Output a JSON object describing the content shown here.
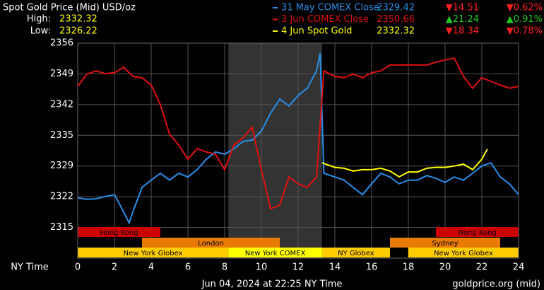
{
  "chart_data": {
    "type": "line",
    "title": "Spot Gold Price (Mid) USD/oz",
    "high_label": "High:",
    "high": 2332.32,
    "low_label": "Low:",
    "low": 2326.22,
    "xlabel": "NY Time",
    "footer": "Jun 04, 2024 at 22:25 NY Time",
    "source": "goldprice.org (mid)",
    "xlim": [
      0,
      24
    ],
    "xticks": [
      0,
      2,
      4,
      6,
      8,
      10,
      12,
      14,
      16,
      18,
      20,
      22,
      24
    ],
    "ylim": [
      2308.35,
      2355.6
    ],
    "yticks": [
      {
        "value": 2355.6,
        "label": "2356"
      },
      {
        "value": 2348.85,
        "label": "2349"
      },
      {
        "value": 2342.1,
        "label": "2342"
      },
      {
        "value": 2335.35,
        "label": "2335"
      },
      {
        "value": 2328.6,
        "label": "2329"
      },
      {
        "value": 2321.85,
        "label": "2322"
      },
      {
        "value": 2315.1,
        "label": "2315"
      }
    ],
    "grid": true,
    "shade": [
      8.2,
      13.3
    ],
    "series": [
      {
        "name": "31 May COMEX Close",
        "color": "#2a8ee8",
        "last": 2329.42,
        "change": "▼14.51",
        "change_pct": "▼0.62%",
        "x": [
          0,
          0.5,
          1,
          1.5,
          2,
          2.5,
          2.8,
          3,
          3.5,
          4,
          4.5,
          5,
          5.5,
          6,
          6.5,
          7,
          7.5,
          8,
          8.5,
          9,
          9.5,
          10,
          10.5,
          11,
          11.5,
          12,
          12.5,
          13,
          13.2,
          13.4,
          14,
          14.5,
          15,
          15.5,
          16,
          16.5,
          17,
          17.5,
          18,
          18.5,
          19,
          19.5,
          20,
          20.5,
          21,
          21.5,
          22,
          22.5,
          23,
          23.5,
          24
        ],
        "values": [
          2321.6,
          2321.3,
          2321.4,
          2321.9,
          2322.3,
          2318.5,
          2316.1,
          2318.5,
          2323.9,
          2325.5,
          2327.0,
          2325.5,
          2327.0,
          2326.2,
          2327.8,
          2330.1,
          2331.7,
          2331.2,
          2332.4,
          2334.0,
          2334.3,
          2336.3,
          2340.2,
          2343.3,
          2341.8,
          2344.1,
          2345.7,
          2349.5,
          2353.4,
          2327.0,
          2326.2,
          2325.5,
          2323.9,
          2322.3,
          2324.7,
          2327.0,
          2326.2,
          2324.7,
          2325.5,
          2325.5,
          2326.5,
          2325.9,
          2325.0,
          2326.2,
          2325.5,
          2327.0,
          2328.6,
          2329.3,
          2326.2,
          2324.7,
          2322.3
        ]
      },
      {
        "name": "3 Jun COMEX Close",
        "color": "#e01010",
        "last": 2350.66,
        "change": "▲21.24",
        "change_pct": "▲0.91%",
        "x": [
          0,
          0.5,
          1,
          1.5,
          2,
          2.5,
          3,
          3.5,
          4,
          4.5,
          5,
          5.5,
          6,
          6.5,
          7,
          7.5,
          8,
          8.5,
          9,
          9.5,
          10,
          10.5,
          11,
          11.5,
          12,
          12.5,
          13,
          13.4,
          14,
          14.5,
          15,
          15.5,
          16,
          16.5,
          17,
          17.5,
          18,
          18.5,
          19,
          19.5,
          20,
          20.5,
          21,
          21.5,
          22,
          22.5,
          23,
          23.5,
          24
        ],
        "values": [
          2346.1,
          2348.8,
          2349.5,
          2348.9,
          2349.1,
          2350.3,
          2348.3,
          2348.0,
          2346.4,
          2342.1,
          2335.6,
          2333.2,
          2330.1,
          2332.4,
          2331.7,
          2331.2,
          2327.8,
          2333.2,
          2334.8,
          2337.1,
          2327.8,
          2319.2,
          2320.0,
          2326.2,
          2324.7,
          2323.9,
          2326.2,
          2349.5,
          2348.3,
          2348.0,
          2348.8,
          2348.0,
          2349.1,
          2349.5,
          2350.8,
          2350.8,
          2350.8,
          2350.8,
          2350.8,
          2351.4,
          2351.9,
          2352.3,
          2348.3,
          2345.7,
          2348.0,
          2347.2,
          2346.4,
          2345.7,
          2346.1
        ]
      },
      {
        "name": "4 Jun Spot Gold",
        "color": "#ffff00",
        "last": 2332.32,
        "change": "▼18.34",
        "change_pct": "▼0.78%",
        "x": [
          13.3,
          13.5,
          14,
          14.5,
          15,
          15.5,
          16,
          16.5,
          17,
          17.5,
          18,
          18.5,
          19,
          19.5,
          20,
          20.5,
          21,
          21.5,
          22,
          22.3
        ],
        "values": [
          2329.3,
          2329.0,
          2328.3,
          2328.1,
          2327.5,
          2327.8,
          2327.8,
          2328.1,
          2327.5,
          2326.22,
          2327.3,
          2327.3,
          2328.1,
          2328.3,
          2328.3,
          2328.6,
          2329.0,
          2327.8,
          2330.1,
          2332.32
        ]
      }
    ],
    "sessions": [
      {
        "label": "Hong Kong",
        "start": 0,
        "end": 4.5,
        "row": 0,
        "color": "#cc0000"
      },
      {
        "label": "Hong Kong",
        "start": 19.5,
        "end": 24,
        "row": 0,
        "color": "#cc0000"
      },
      {
        "label": "London",
        "start": 3.5,
        "end": 11,
        "row": 1,
        "color": "#e87a00"
      },
      {
        "label": "Sydney",
        "start": 17,
        "end": 23,
        "row": 1,
        "color": "#e87a00"
      },
      {
        "label": "New York Globex",
        "start": 0,
        "end": 8.2,
        "row": 2,
        "color": "#ffcc00"
      },
      {
        "label": "New York COMEX",
        "start": 8.2,
        "end": 13.3,
        "row": 2,
        "color": "#ffff00"
      },
      {
        "label": "NY Globex",
        "start": 13.3,
        "end": 17,
        "row": 2,
        "color": "#ffcc00"
      },
      {
        "label": "New York Globex",
        "start": 18,
        "end": 24,
        "row": 2,
        "color": "#ffcc00"
      }
    ]
  }
}
